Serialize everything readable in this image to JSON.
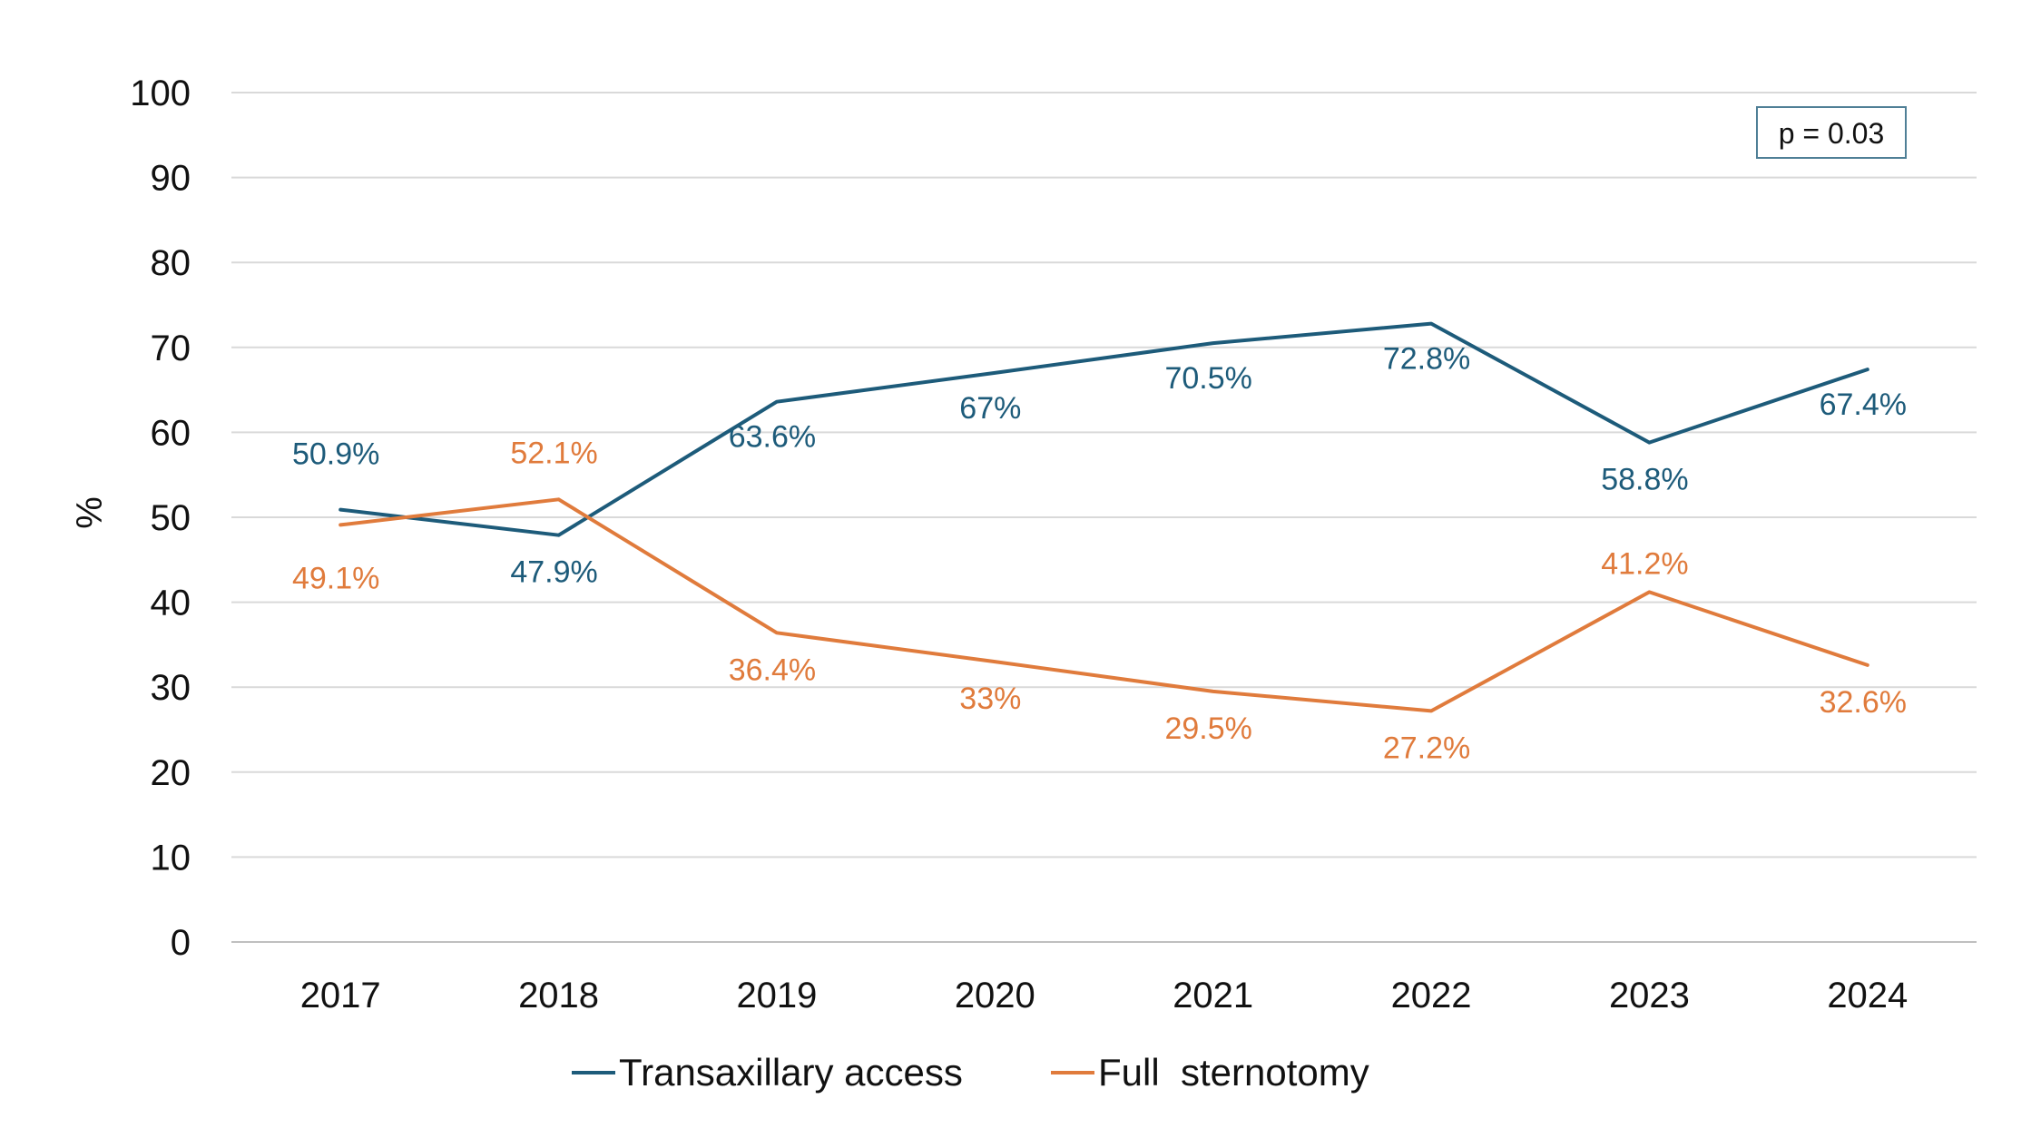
{
  "chart_data": {
    "type": "line",
    "title": "",
    "xlabel": "",
    "ylabel": "%",
    "ylim": [
      0,
      100
    ],
    "yticks": [
      0,
      10,
      20,
      30,
      40,
      50,
      60,
      70,
      80,
      90,
      100
    ],
    "categories": [
      "2017",
      "2018",
      "2019",
      "2020",
      "2021",
      "2022",
      "2023",
      "2024"
    ],
    "grid": true,
    "legend_position": "bottom",
    "series": [
      {
        "name": "Transaxillary access",
        "color": "#1d5b7a",
        "values": [
          50.9,
          47.9,
          63.6,
          67,
          70.5,
          72.8,
          58.8,
          67.4
        ],
        "labels": [
          "50.9%",
          "47.9%",
          "63.6%",
          "67%",
          "70.5%",
          "72.8%",
          "58.8%",
          "67.4%"
        ]
      },
      {
        "name": "Full  sternotomy",
        "color": "#e07b3c",
        "values": [
          49.1,
          52.1,
          36.4,
          33,
          29.5,
          27.2,
          41.2,
          32.6
        ],
        "labels": [
          "49.1%",
          "52.1%",
          "36.4%",
          "33%",
          "29.5%",
          "27.2%",
          "41.2%",
          "32.6%"
        ]
      }
    ],
    "annotations": [
      {
        "text": "p = 0.03",
        "position": "top-right"
      }
    ]
  }
}
